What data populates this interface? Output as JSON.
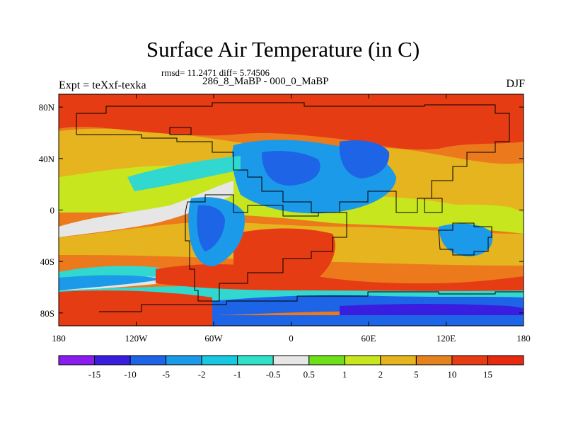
{
  "map": {
    "title": "Surface Air Temperature (in C)",
    "stats": "rmsd= 11.2471 diff= 5.74506",
    "left_label": "Expt = teXxf-texka",
    "center_label": "286_8_MaBP - 000_0_MaBP",
    "right_label": "DJF",
    "lat_ticks": [
      "80N",
      "40N",
      "0",
      "40S",
      "80S"
    ],
    "lon_ticks": [
      "180",
      "120W",
      "60W",
      "0",
      "60E",
      "120E",
      "180"
    ]
  },
  "legend": {
    "labels": [
      "-15",
      "-10",
      "-5",
      "-2",
      "-1",
      "-0.5",
      "0.5",
      "1",
      "2",
      "5",
      "10",
      "15"
    ],
    "colors": [
      "#8a1cf0",
      "#3a1ee0",
      "#1e64e6",
      "#1a9ae8",
      "#17c8e0",
      "#30e0c8",
      "#e6e6e6",
      "#6ee017",
      "#c8e61e",
      "#e6b41e",
      "#e6821e",
      "#e63c14",
      "#e62a10"
    ]
  },
  "palette": {
    "hot": "#e63c14",
    "warm": "#ec7a1c",
    "mild": "#e6b41e",
    "cool": "#c8e61e",
    "green": "#7adc1e",
    "neutral": "#e6e6e6",
    "cyan": "#30d8d0",
    "lightblue": "#1a9ae8",
    "blue": "#1e64e6",
    "deep": "#3a1ee0"
  }
}
